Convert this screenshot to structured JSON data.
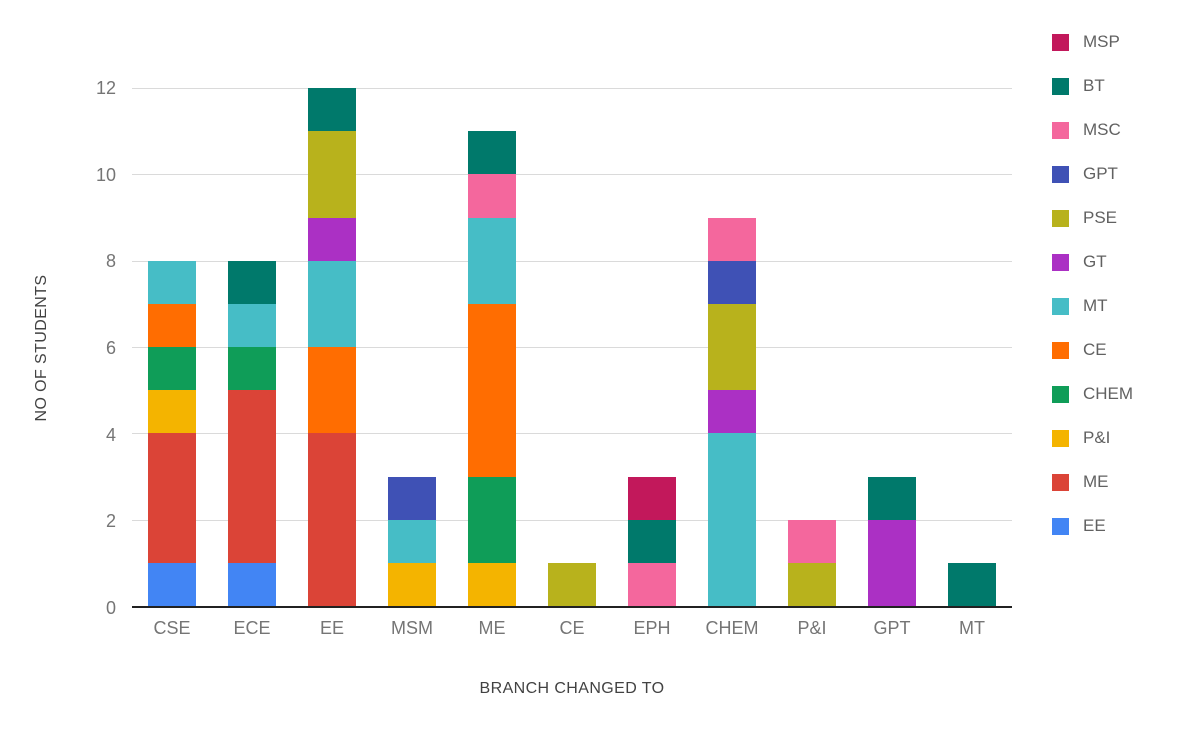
{
  "chart_data": {
    "type": "bar",
    "stacked": true,
    "title": "",
    "xlabel": "BRANCH CHANGED TO",
    "ylabel": "NO OF STUDENTS",
    "ylim": [
      0,
      12
    ],
    "yticks": [
      0,
      2,
      4,
      6,
      8,
      10,
      12
    ],
    "grid": true,
    "legend_position": "right",
    "categories": [
      "CSE",
      "ECE",
      "EE",
      "MSM",
      "ME",
      "CE",
      "EPH",
      "CHEM",
      "P&I",
      "GPT",
      "MT"
    ],
    "series": [
      {
        "name": "EE",
        "color": "#4285F4",
        "values": [
          1,
          1,
          0,
          0,
          0,
          0,
          0,
          0,
          0,
          0,
          0
        ]
      },
      {
        "name": "ME",
        "color": "#DB4437",
        "values": [
          3,
          4,
          4,
          0,
          0,
          0,
          0,
          0,
          0,
          0,
          0
        ]
      },
      {
        "name": "P&I",
        "color": "#F4B400",
        "values": [
          1,
          0,
          0,
          1,
          1,
          0,
          0,
          0,
          0,
          0,
          0
        ]
      },
      {
        "name": "CHEM",
        "color": "#0F9D58",
        "values": [
          1,
          1,
          0,
          0,
          2,
          0,
          0,
          0,
          0,
          0,
          0
        ]
      },
      {
        "name": "CE",
        "color": "#FF6D01",
        "values": [
          1,
          0,
          2,
          0,
          4,
          0,
          0,
          0,
          0,
          0,
          0
        ]
      },
      {
        "name": "MT",
        "color": "#46BDC6",
        "values": [
          1,
          1,
          2,
          1,
          2,
          0,
          0,
          4,
          0,
          0,
          0
        ]
      },
      {
        "name": "GT",
        "color": "#AB30C4",
        "values": [
          0,
          0,
          1,
          0,
          0,
          0,
          0,
          1,
          0,
          2,
          0
        ]
      },
      {
        "name": "PSE",
        "color": "#B8B21C",
        "values": [
          0,
          0,
          2,
          0,
          0,
          1,
          0,
          2,
          1,
          0,
          0
        ]
      },
      {
        "name": "GPT",
        "color": "#3F51B5",
        "values": [
          0,
          0,
          0,
          1,
          0,
          0,
          0,
          1,
          0,
          0,
          0
        ]
      },
      {
        "name": "MSC",
        "color": "#F4679D",
        "values": [
          0,
          0,
          0,
          0,
          1,
          0,
          1,
          1,
          1,
          0,
          0
        ]
      },
      {
        "name": "BT",
        "color": "#00796B",
        "values": [
          0,
          1,
          1,
          0,
          1,
          0,
          1,
          0,
          0,
          1,
          1
        ]
      },
      {
        "name": "MSP",
        "color": "#C2185B",
        "values": [
          0,
          0,
          0,
          0,
          0,
          0,
          1,
          0,
          0,
          0,
          0
        ]
      }
    ],
    "legend_order_note": "legend displays series in reverse stacking order (top of stack first)"
  }
}
